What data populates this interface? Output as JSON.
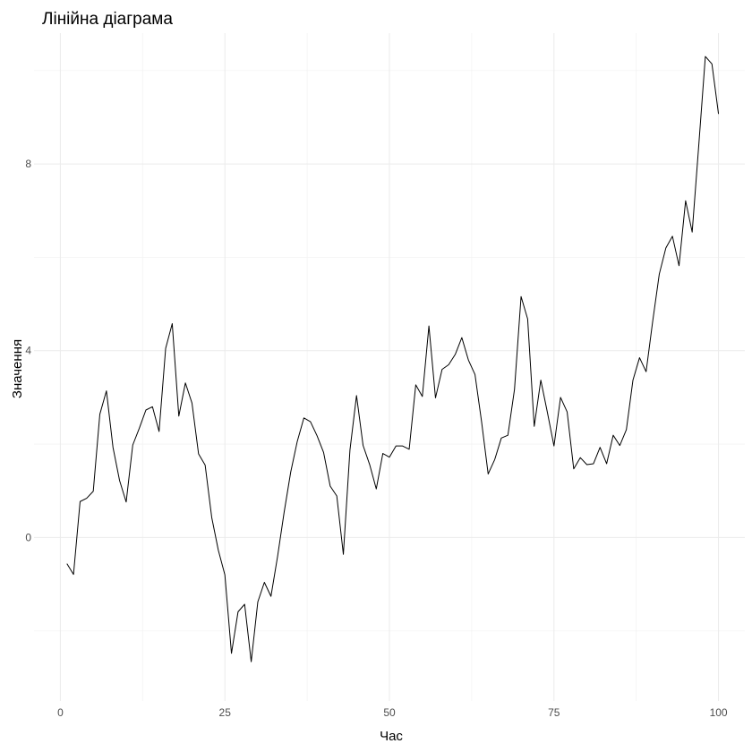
{
  "chart_data": {
    "type": "line",
    "title": "Лінійна діаграма",
    "xlabel": "Час",
    "ylabel": "Значення",
    "xlim": [
      -4.0,
      104.0
    ],
    "ylim": [
      -3.5,
      10.8
    ],
    "x_ticks": [
      0,
      25,
      50,
      75,
      100
    ],
    "x_tick_labels": [
      "0",
      "25",
      "50",
      "75",
      "100"
    ],
    "x_minor_ticks": [
      12.5,
      37.5,
      62.5,
      87.5
    ],
    "y_ticks": [
      0,
      4,
      8
    ],
    "y_tick_labels": [
      "0",
      "4",
      "8"
    ],
    "y_minor_ticks": [
      -2,
      2,
      6,
      10
    ],
    "grid": true,
    "legend": "none",
    "series": [
      {
        "color": "#000000",
        "x": [
          1,
          2,
          3,
          4,
          5,
          6,
          7,
          8,
          9,
          10,
          11,
          12,
          13,
          14,
          15,
          16,
          17,
          18,
          19,
          20,
          21,
          22,
          23,
          24,
          25,
          26,
          27,
          28,
          29,
          30,
          31,
          32,
          33,
          34,
          35,
          36,
          37,
          38,
          39,
          40,
          41,
          42,
          43,
          44,
          45,
          46,
          47,
          48,
          49,
          50,
          51,
          52,
          53,
          54,
          55,
          56,
          57,
          58,
          59,
          60,
          61,
          62,
          63,
          64,
          65,
          66,
          67,
          68,
          69,
          70,
          71,
          72,
          73,
          74,
          75,
          76,
          77,
          78,
          79,
          80,
          81,
          82,
          83,
          84,
          85,
          86,
          87,
          88,
          89,
          90,
          91,
          92,
          93,
          94,
          95,
          96,
          97,
          98,
          99,
          100
        ],
        "y": [
          -0.56,
          -0.79,
          0.77,
          0.84,
          0.99,
          2.64,
          3.14,
          1.93,
          1.22,
          0.76,
          1.98,
          2.34,
          2.73,
          2.8,
          2.27,
          4.05,
          4.58,
          2.6,
          3.31,
          2.88,
          1.79,
          1.55,
          0.43,
          -0.27,
          -0.8,
          -2.48,
          -1.59,
          -1.43,
          -2.66,
          -1.38,
          -0.96,
          -1.26,
          -0.41,
          0.54,
          1.4,
          2.06,
          2.56,
          2.48,
          2.18,
          1.82,
          1.1,
          0.89,
          -0.36,
          1.87,
          3.04,
          1.97,
          1.56,
          1.04,
          1.8,
          1.72,
          1.96,
          1.96,
          1.89,
          3.27,
          3.02,
          4.53,
          2.99,
          3.6,
          3.7,
          3.92,
          4.28,
          3.8,
          3.49,
          2.48,
          1.36,
          1.67,
          2.13,
          2.19,
          3.17,
          5.16,
          4.68,
          2.38,
          3.37,
          2.68,
          1.96,
          3.0,
          2.69,
          1.47,
          1.71,
          1.56,
          1.58,
          1.93,
          1.58,
          2.19,
          1.97,
          2.31,
          3.37,
          3.85,
          3.55,
          4.63,
          5.64,
          6.2,
          6.45,
          5.82,
          7.21,
          6.54,
          8.4,
          10.3,
          10.14,
          9.07
        ]
      }
    ]
  }
}
